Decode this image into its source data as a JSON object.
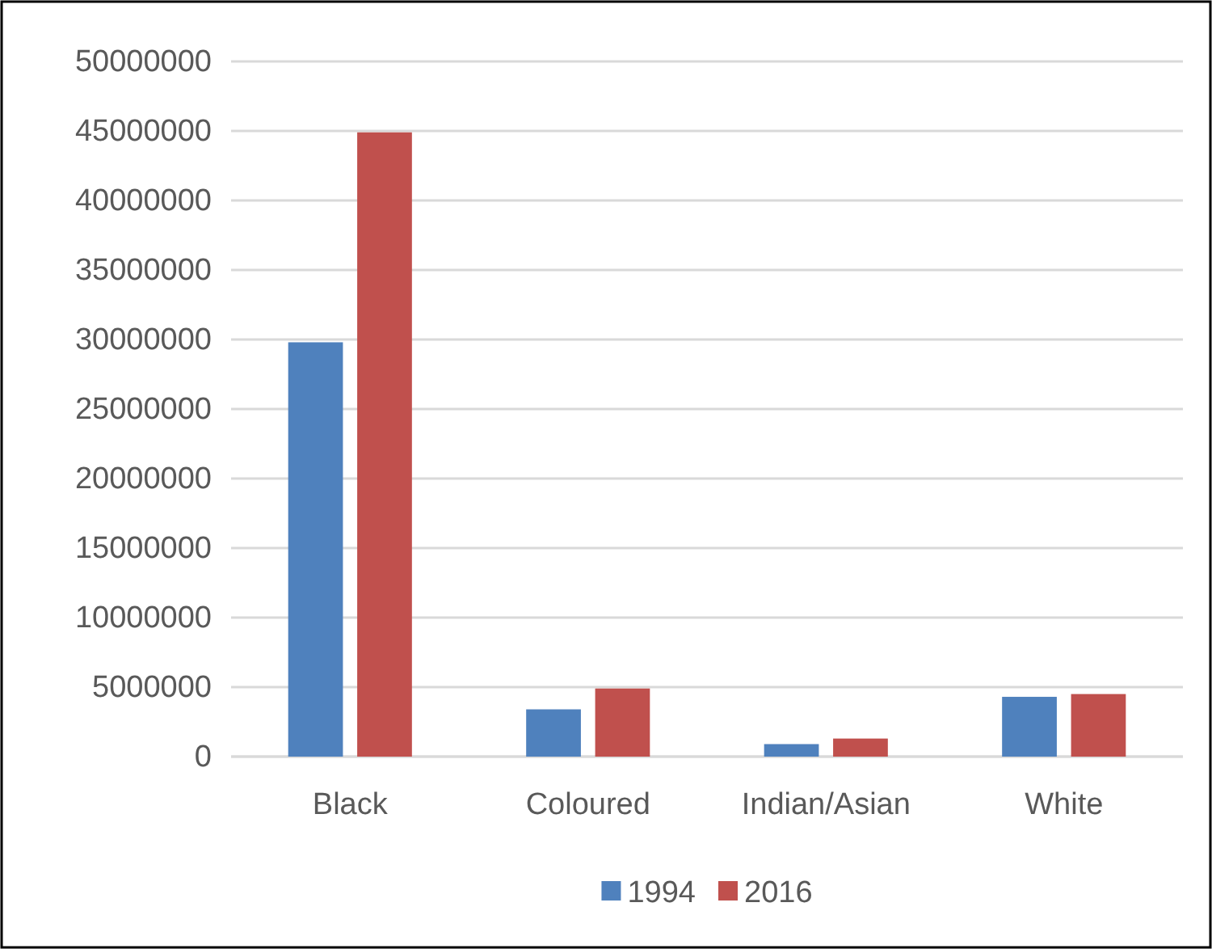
{
  "chart_data": {
    "type": "bar",
    "categories": [
      "Black",
      "Coloured",
      "Indian/Asian",
      "White"
    ],
    "series": [
      {
        "name": "1994",
        "color": "#4f81bd",
        "values": [
          29800000,
          3400000,
          900000,
          4300000
        ]
      },
      {
        "name": "2016",
        "color": "#c0504d",
        "values": [
          44900000,
          4900000,
          1300000,
          4500000
        ]
      }
    ],
    "ylim": [
      0,
      50000000
    ],
    "yticks": [
      0,
      5000000,
      10000000,
      15000000,
      20000000,
      25000000,
      30000000,
      35000000,
      40000000,
      45000000,
      50000000
    ],
    "grid": "y",
    "legend": "bottom"
  }
}
